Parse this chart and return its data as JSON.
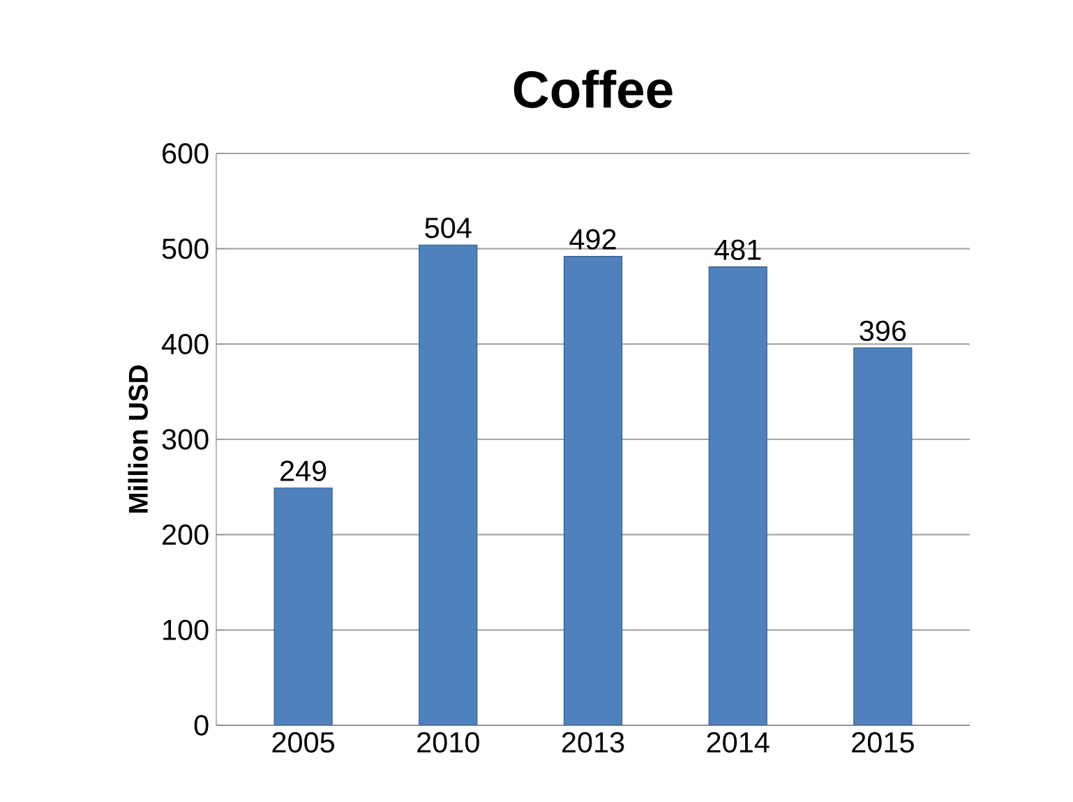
{
  "chart_data": {
    "type": "bar",
    "title": "Coffee",
    "ylabel": "Million USD",
    "categories": [
      "2005",
      "2010",
      "2013",
      "2014",
      "2015"
    ],
    "values": [
      249,
      504,
      492,
      481,
      396
    ],
    "color": "#4f81bd",
    "ylim": [
      0,
      600
    ],
    "yticks": [
      0,
      100,
      200,
      300,
      400,
      500,
      600
    ],
    "grid": "y",
    "data_labels": true
  }
}
